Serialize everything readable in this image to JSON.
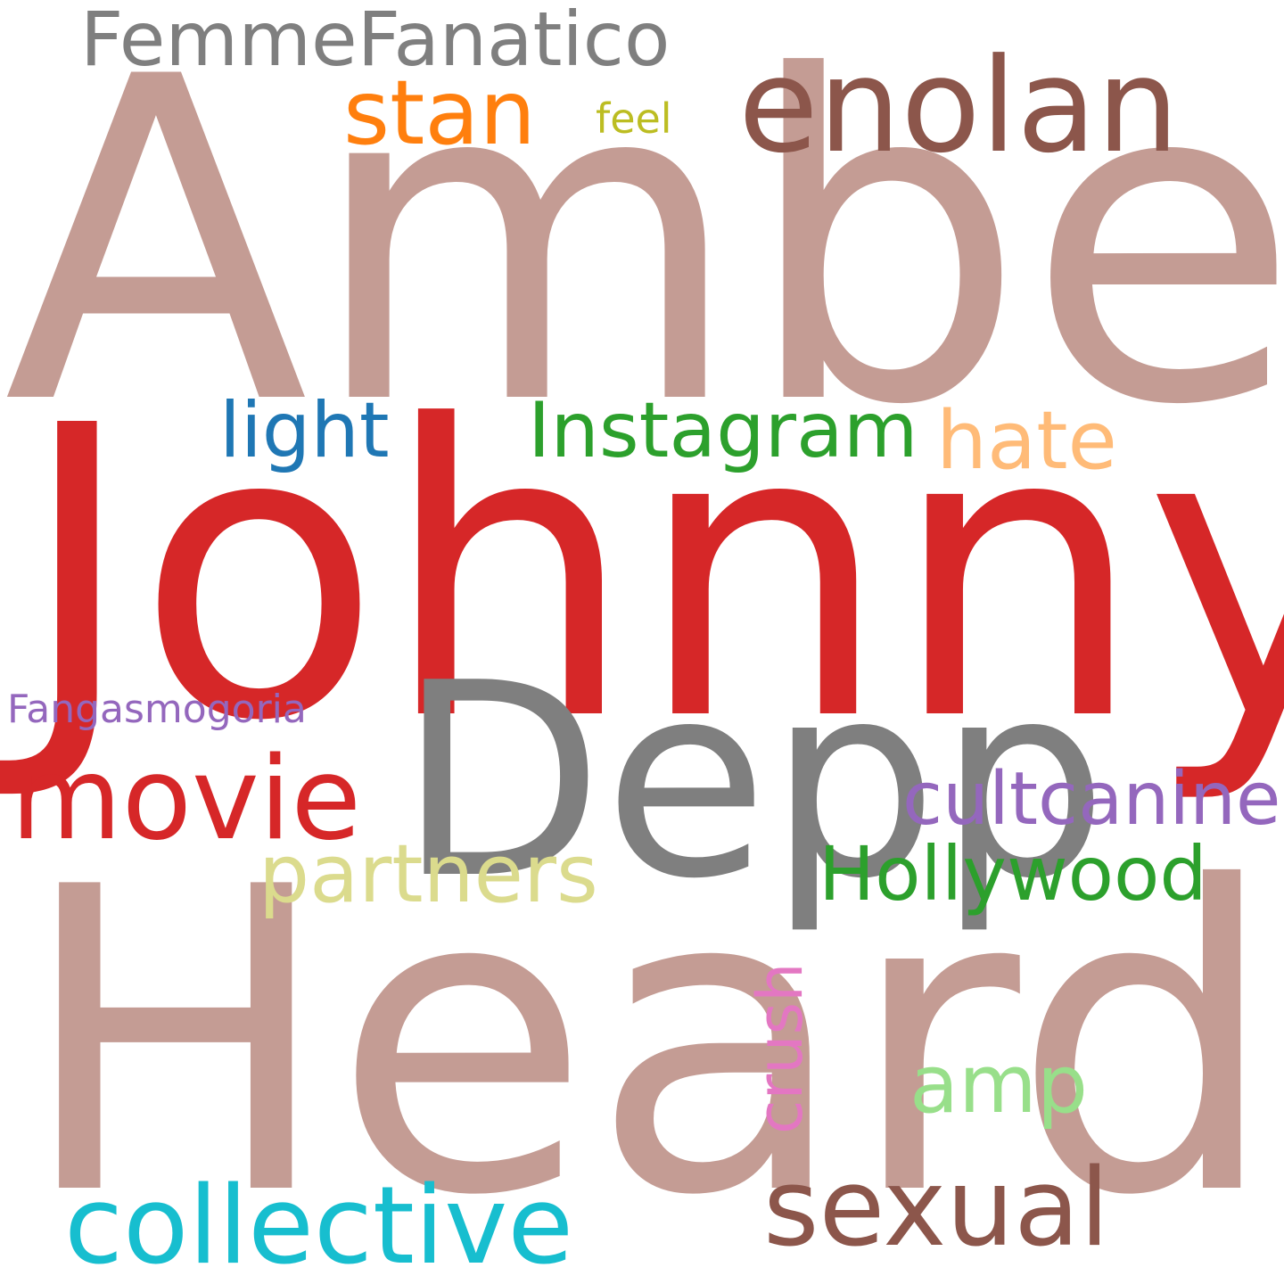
{
  "words": {
    "amber": {
      "text": "Amber",
      "color": "#c49c94"
    },
    "johnny": {
      "text": "Johnny",
      "color": "#d62728"
    },
    "heard": {
      "text": "Heard",
      "color": "#c49c94"
    },
    "depp": {
      "text": "Depp",
      "color": "#7f7f7f"
    },
    "enolan": {
      "text": "enolan",
      "color": "#8c564b"
    },
    "femmefanatico": {
      "text": "FemmeFanatico",
      "color": "#7f7f7f"
    },
    "stan": {
      "text": "stan",
      "color": "#ff7f0e"
    },
    "feel": {
      "text": "feel",
      "color": "#bcbd22"
    },
    "light": {
      "text": "light",
      "color": "#1f77b4"
    },
    "instagram": {
      "text": "Instagram",
      "color": "#2ca02c"
    },
    "hate": {
      "text": "hate",
      "color": "#ffbb78"
    },
    "fangasmogoria": {
      "text": "Fangasmogoria",
      "color": "#9467bd"
    },
    "movie": {
      "text": "movie",
      "color": "#d62728"
    },
    "cultcanine": {
      "text": "cultcanine",
      "color": "#9467bd"
    },
    "partners": {
      "text": "partners",
      "color": "#dbdb8d"
    },
    "hollywood": {
      "text": "Hollywood",
      "color": "#2ca02c"
    },
    "crush": {
      "text": "crush",
      "color": "#e377c2"
    },
    "amp": {
      "text": "amp",
      "color": "#98df8a"
    },
    "collective": {
      "text": "collective",
      "color": "#17becf"
    },
    "sexual": {
      "text": "sexual",
      "color": "#8c564b"
    }
  }
}
